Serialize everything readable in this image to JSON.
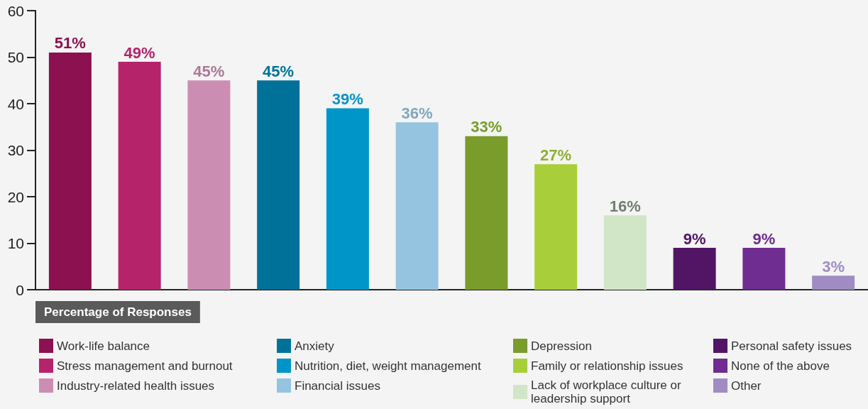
{
  "chart_data": {
    "type": "bar",
    "categories": [
      null,
      null,
      null,
      null,
      null,
      null,
      null,
      null,
      null,
      null,
      null,
      null
    ],
    "series": [
      {
        "name": "Work-life balance",
        "color": "#8b1150",
        "values": [
          51,
          null,
          null,
          null,
          null,
          null,
          null,
          null,
          null,
          null,
          null,
          null
        ],
        "value_labels": [
          "51%",
          null,
          null,
          null,
          null,
          null,
          null,
          null,
          null,
          null,
          null,
          null
        ]
      },
      {
        "name": "Stress management and burnout",
        "color": "#b5236b",
        "values": [
          null,
          49,
          null,
          null,
          null,
          null,
          null,
          null,
          null,
          null,
          null,
          null
        ],
        "value_labels": [
          null,
          "49%",
          null,
          null,
          null,
          null,
          null,
          null,
          null,
          null,
          null,
          null
        ]
      },
      {
        "name": "Industry-related health issues",
        "color": "#cc8db3",
        "values": [
          null,
          null,
          45,
          null,
          null,
          null,
          null,
          null,
          null,
          null,
          null,
          null
        ],
        "value_labels": [
          null,
          null,
          "45%",
          null,
          null,
          null,
          null,
          null,
          null,
          null,
          null,
          null
        ]
      },
      {
        "name": "Anxiety",
        "color": "#00729a",
        "values": [
          null,
          null,
          null,
          45,
          null,
          null,
          null,
          null,
          null,
          null,
          null,
          null
        ],
        "value_labels": [
          null,
          null,
          null,
          "45%",
          null,
          null,
          null,
          null,
          null,
          null,
          null,
          null
        ]
      },
      {
        "name": "Nutrition, diet, weight management",
        "color": "#0095c8",
        "values": [
          null,
          null,
          null,
          null,
          39,
          null,
          null,
          null,
          null,
          null,
          null,
          null
        ],
        "value_labels": [
          null,
          null,
          null,
          null,
          "39%",
          null,
          null,
          null,
          null,
          null,
          null,
          null
        ]
      },
      {
        "name": "Financial issues",
        "color": "#95c4e1",
        "values": [
          null,
          null,
          null,
          null,
          null,
          36,
          null,
          null,
          null,
          null,
          null,
          null
        ],
        "value_labels": [
          null,
          null,
          null,
          null,
          null,
          "36%",
          null,
          null,
          null,
          null,
          null,
          null
        ]
      },
      {
        "name": "Depression",
        "color": "#799c2a",
        "values": [
          null,
          null,
          null,
          null,
          null,
          null,
          33,
          null,
          null,
          null,
          null,
          null
        ],
        "value_labels": [
          null,
          null,
          null,
          null,
          null,
          null,
          "33%",
          null,
          null,
          null,
          null,
          null
        ]
      },
      {
        "name": "Family or relationship issues",
        "color": "#a8cf3a",
        "values": [
          null,
          null,
          null,
          null,
          null,
          null,
          null,
          27,
          null,
          null,
          null,
          null
        ],
        "value_labels": [
          null,
          null,
          null,
          null,
          null,
          null,
          null,
          "27%",
          null,
          null,
          null,
          null
        ]
      },
      {
        "name": "Lack of workplace culture or leadership support",
        "color": "#d0e6c7",
        "values": [
          null,
          null,
          null,
          null,
          null,
          null,
          null,
          null,
          16,
          null,
          null,
          null
        ],
        "value_labels": [
          null,
          null,
          null,
          null,
          null,
          null,
          null,
          null,
          "16%",
          null,
          null,
          null
        ]
      },
      {
        "name": "Personal safety issues",
        "color": "#521566",
        "values": [
          null,
          null,
          null,
          null,
          null,
          null,
          null,
          null,
          null,
          9,
          null,
          null
        ],
        "value_labels": [
          null,
          null,
          null,
          null,
          null,
          null,
          null,
          null,
          null,
          "9%",
          null,
          null
        ]
      },
      {
        "name": "None of the above",
        "color": "#6f2c91",
        "values": [
          null,
          null,
          null,
          null,
          null,
          null,
          null,
          null,
          null,
          null,
          9,
          null
        ],
        "value_labels": [
          null,
          null,
          null,
          null,
          null,
          null,
          null,
          null,
          null,
          null,
          "9%",
          null
        ]
      },
      {
        "name": "Other",
        "color": "#a08bc4",
        "values": [
          null,
          null,
          null,
          null,
          null,
          null,
          null,
          null,
          null,
          null,
          null,
          3
        ],
        "value_labels": [
          null,
          null,
          null,
          null,
          null,
          null,
          null,
          null,
          null,
          null,
          null,
          "3%"
        ]
      }
    ],
    "legend_title": "Percentage of Responses",
    "legend": "bottom",
    "grid": false,
    "ylim": [
      0,
      60
    ],
    "yticks": [
      0,
      10,
      20,
      30,
      40,
      50,
      60
    ],
    "tick_labels": "y"
  }
}
